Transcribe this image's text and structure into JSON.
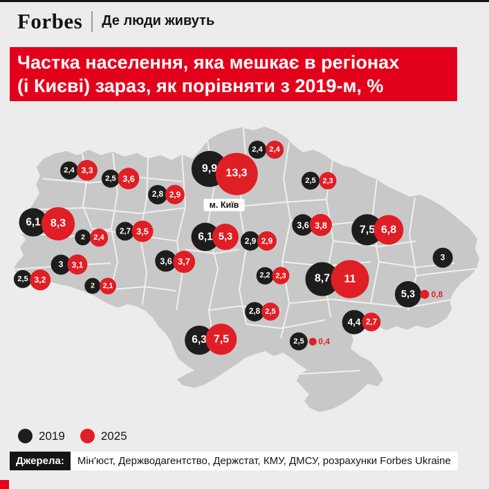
{
  "header": {
    "logo": "Forbes",
    "tagline": "Де люди живуть"
  },
  "title": {
    "lines": [
      "Частка населення, яка мешкає в регіонах",
      "(і Києві) зараз, як порівняти з 2019-м, %"
    ]
  },
  "map": {
    "kyiv_label": "м. Київ"
  },
  "legend": {
    "items": [
      {
        "label": "2019",
        "color": "#1d1d1b"
      },
      {
        "label": "2025",
        "color": "#e01e25"
      }
    ]
  },
  "sources": {
    "label": "Джерела:",
    "text": "Мін'юст, Держводагентство, Держстат, КМУ, ДМСУ, розрахунки Forbes Ukraine"
  },
  "colors": {
    "banner_red": "#e3001b",
    "bubble_black": "#1d1d1b",
    "bubble_red": "#e01e25",
    "map_fill": "#c8c8c8",
    "background": "#ececec"
  },
  "chart_data": {
    "type": "map-bubbles",
    "title": "Частка населення, яка мешкає в регіонах (і Києві) зараз, як порівняти з 2019-м, %",
    "units": "% of population",
    "series_labels": [
      "2019",
      "2025"
    ],
    "points": [
      {
        "v2019": "2,4",
        "x2019": 372,
        "y2019": 216,
        "v2025": "2,4",
        "x2025": 397,
        "y2025": 216
      },
      {
        "v2019": "2,4",
        "x2019": 100,
        "y2019": 246,
        "v2025": "3,3",
        "x2025": 126,
        "y2025": 246
      },
      {
        "v2019": "2,5",
        "x2019": 160,
        "y2019": 258,
        "v2025": "3,6",
        "x2025": 186,
        "y2025": 258
      },
      {
        "v2019": "2,8",
        "x2019": 228,
        "y2019": 281,
        "v2025": "2,9",
        "x2025": 253,
        "y2025": 281
      },
      {
        "region": "м. Київ",
        "v2019": "9,9",
        "x2019": 303,
        "y2019": 244,
        "v2025": "13,3",
        "x2025": 342,
        "y2025": 251
      },
      {
        "v2019": "2,5",
        "x2019": 449,
        "y2019": 261,
        "v2025": "2,3",
        "x2025": 474,
        "y2025": 261
      },
      {
        "v2019": "6,1",
        "x2019": 48,
        "y2019": 321,
        "v2025": "8,3",
        "x2025": 84,
        "y2025": 323
      },
      {
        "v2019": "2",
        "x2019": 120,
        "y2019": 343,
        "v2025": "2,4",
        "x2025": 143,
        "y2025": 343
      },
      {
        "v2019": "2,7",
        "x2019": 181,
        "y2019": 334,
        "v2025": "3,5",
        "x2025": 206,
        "y2025": 334
      },
      {
        "v2019": "6,1",
        "x2019": 297,
        "y2019": 342,
        "v2025": "5,3",
        "x2025": 326,
        "y2025": 342
      },
      {
        "v2019": "2,9",
        "x2019": 362,
        "y2019": 348,
        "v2025": "2,9",
        "x2025": 386,
        "y2025": 348
      },
      {
        "v2019": "3,6",
        "x2019": 438,
        "y2019": 325,
        "v2025": "3,8",
        "x2025": 464,
        "y2025": 325
      },
      {
        "v2019": "7,5",
        "x2019": 531,
        "y2019": 332,
        "v2025": "6,8",
        "x2025": 562,
        "y2025": 332
      },
      {
        "v2019": "3",
        "x2019": 640,
        "y2019": 372,
        "v2025": null,
        "x2025": null,
        "y2025": null
      },
      {
        "v2019": "3",
        "x2019": 88,
        "y2019": 382,
        "v2025": "3,1",
        "x2025": 112,
        "y2025": 382
      },
      {
        "v2019": "3,6",
        "x2019": 240,
        "y2019": 377,
        "v2025": "3,7",
        "x2025": 266,
        "y2025": 378
      },
      {
        "v2019": "2,5",
        "x2019": 33,
        "y2019": 403,
        "v2025": "3,2",
        "x2025": 58,
        "y2025": 404
      },
      {
        "v2019": "2",
        "x2019": 134,
        "y2019": 413,
        "v2025": "2,1",
        "x2025": 156,
        "y2025": 413
      },
      {
        "v2019": "2,2",
        "x2019": 383,
        "y2019": 398,
        "v2025": "2,3",
        "x2025": 406,
        "y2025": 398
      },
      {
        "v2019": "8,7",
        "x2019": 466,
        "y2019": 403,
        "v2025": "11",
        "x2025": 506,
        "y2025": 403
      },
      {
        "v2019": "5,3",
        "x2019": 590,
        "y2019": 425,
        "v2025": "0,8",
        "x2025": 614,
        "y2025": 425
      },
      {
        "v2019": "2,8",
        "x2019": 368,
        "y2019": 450,
        "v2025": "2,5",
        "x2025": 391,
        "y2025": 450
      },
      {
        "v2019": "4,4",
        "x2019": 512,
        "y2019": 465,
        "v2025": "2,7",
        "x2025": 537,
        "y2025": 465
      },
      {
        "v2019": "6,3",
        "x2019": 288,
        "y2019": 491,
        "v2025": "7,5",
        "x2025": 320,
        "y2025": 490
      },
      {
        "v2019": "2,5",
        "x2019": 432,
        "y2019": 493,
        "v2025": "0,4",
        "x2025": 452,
        "y2025": 493
      }
    ]
  }
}
